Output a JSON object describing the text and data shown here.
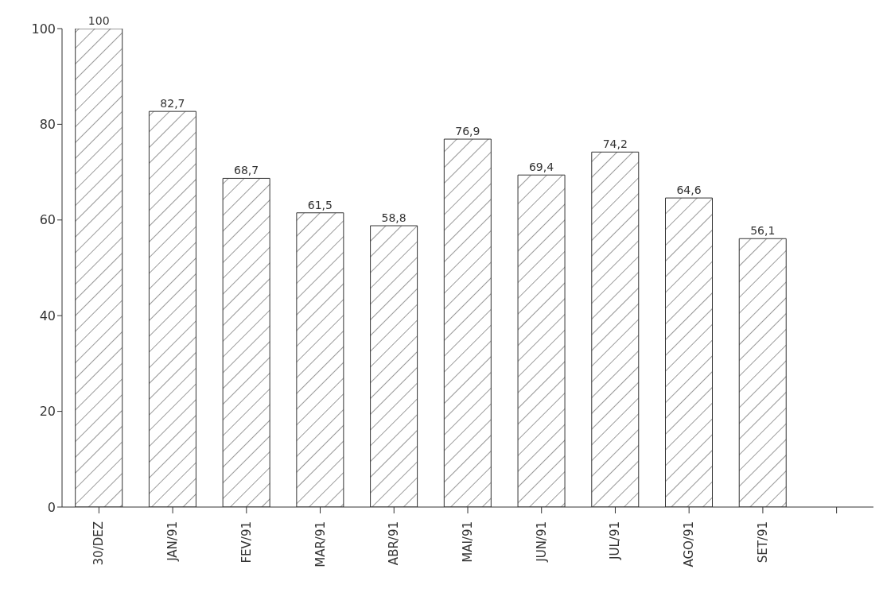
{
  "chart_data": {
    "type": "bar",
    "categories": [
      "30/DEZ",
      "JAN/91",
      "FEV/91",
      "MAR/91",
      "ABR/91",
      "MAI/91",
      "JUN/91",
      "JUL/91",
      "AGO/91",
      "SET/91",
      null
    ],
    "values": [
      100,
      82.7,
      68.7,
      61.5,
      58.8,
      76.9,
      69.4,
      74.2,
      64.6,
      56.1,
      null
    ],
    "value_labels": [
      "100",
      "82,7",
      "68,7",
      "61,5",
      "58,8",
      "76,9",
      "69,4",
      "74,2",
      "64,6",
      "56,1",
      null
    ],
    "color": "#333333",
    "ylim": [
      0,
      100
    ],
    "yticks": [
      0,
      20,
      40,
      60,
      80,
      100
    ],
    "grid": false,
    "legend": false
  }
}
